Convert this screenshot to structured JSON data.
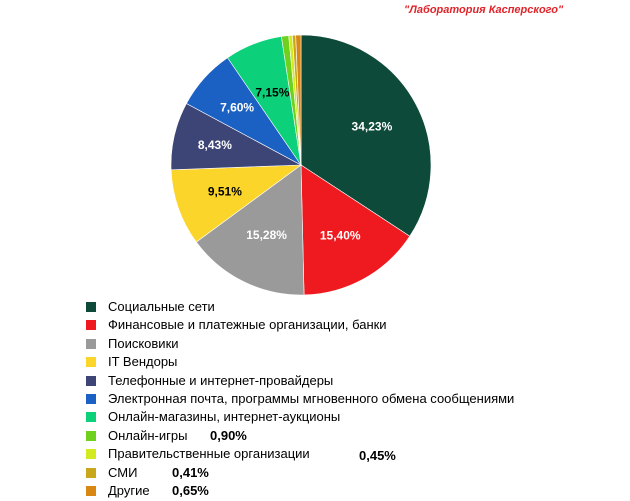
{
  "source": "\"Лаборатория Касперского\"",
  "chart_data": {
    "type": "pie",
    "title": "",
    "legend_position": "bottom",
    "slices": [
      {
        "name": "Социальные сети",
        "value": 34.23,
        "label": "34,23%",
        "color": "#0d4a3a",
        "label_color": "#ffffff",
        "label_shown": true
      },
      {
        "name": "Финансовые и платежные организации, банки",
        "value": 15.4,
        "label": "15,40%",
        "color": "#ef1a1f",
        "label_color": "#ffffff",
        "label_shown": true
      },
      {
        "name": "Поисковики",
        "value": 15.28,
        "label": "15,28%",
        "color": "#9a9a9a",
        "label_color": "#ffffff",
        "label_shown": true
      },
      {
        "name": "IT Вендоры",
        "value": 9.51,
        "label": "9,51%",
        "color": "#fcd52a",
        "label_color": "#000000",
        "label_shown": true
      },
      {
        "name": "Телефонные и интернет-провайдеры",
        "value": 8.43,
        "label": "8,43%",
        "color": "#3d4577",
        "label_color": "#ffffff",
        "label_shown": true
      },
      {
        "name": "Электронная почта, программы мгновенного обмена сообщениями",
        "value": 7.6,
        "label": "7,60%",
        "color": "#1b61c4",
        "label_color": "#ffffff",
        "label_shown": true
      },
      {
        "name": "Онлайн-магазины, интернет-аукционы",
        "value": 7.15,
        "label": "7,15%",
        "color": "#0cd07a",
        "label_color": "#000000",
        "label_shown": true
      },
      {
        "name": "Онлайн-игры",
        "value": 0.9,
        "label": "0,90%",
        "color": "#6fd01d",
        "label_color": "#000000",
        "label_shown": false
      },
      {
        "name": "Правительственные организации",
        "value": 0.45,
        "label": "0,45%",
        "color": "#d2ea1f",
        "label_color": "#000000",
        "label_shown": false
      },
      {
        "name": "СМИ",
        "value": 0.41,
        "label": "0,41%",
        "color": "#c9a71a",
        "label_color": "#000000",
        "label_shown": false
      },
      {
        "name": "Другие",
        "value": 0.65,
        "label": "0,65%",
        "color": "#d88712",
        "label_color": "#000000",
        "label_shown": false
      }
    ]
  },
  "legend": {
    "items": [
      {
        "label": "Социальные сети",
        "value": ""
      },
      {
        "label": "Финансовые и платежные организации, банки",
        "value": ""
      },
      {
        "label": "Поисковики",
        "value": ""
      },
      {
        "label": "IT Вендоры",
        "value": ""
      },
      {
        "label": "Телефонные и интернет-провайдеры",
        "value": ""
      },
      {
        "label": "Электронная почта, программы мгновенного обмена сообщениями",
        "value": ""
      },
      {
        "label": "Онлайн-магазины, интернет-аукционы",
        "value": ""
      },
      {
        "label": "Онлайн-игры",
        "value": "0,90%"
      },
      {
        "label": "Правительственные организации",
        "value": "0,45%"
      },
      {
        "label": "СМИ",
        "value": "0,41%"
      },
      {
        "label": "Другие",
        "value": "0,65%"
      }
    ]
  }
}
